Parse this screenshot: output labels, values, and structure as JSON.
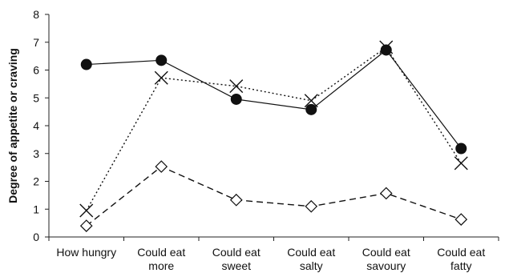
{
  "chart_data": {
    "type": "line",
    "title": "",
    "xlabel": "",
    "ylabel": "Degree of appetite or craving",
    "ylim": [
      0,
      8
    ],
    "yticks": [
      0,
      1,
      2,
      3,
      4,
      5,
      6,
      7,
      8
    ],
    "grid": false,
    "legend": "none",
    "categories": [
      [
        "How hungry"
      ],
      [
        "Could eat",
        "more"
      ],
      [
        "Could eat",
        "sweet"
      ],
      [
        "Could eat",
        "salty"
      ],
      [
        "Could eat",
        "savoury"
      ],
      [
        "Could eat",
        "fatty"
      ]
    ],
    "series": [
      {
        "marker": "filled-circle",
        "line": "solid",
        "color": "#111111",
        "values": [
          6.2,
          6.35,
          4.95,
          4.58,
          6.72,
          3.18
        ]
      },
      {
        "marker": "x",
        "line": "dotted",
        "color": "#111111",
        "values": [
          0.95,
          5.72,
          5.42,
          4.9,
          6.82,
          2.65
        ]
      },
      {
        "marker": "open-diamond",
        "line": "dashed",
        "color": "#111111",
        "values": [
          0.4,
          2.53,
          1.33,
          1.1,
          1.57,
          0.63
        ]
      }
    ]
  }
}
